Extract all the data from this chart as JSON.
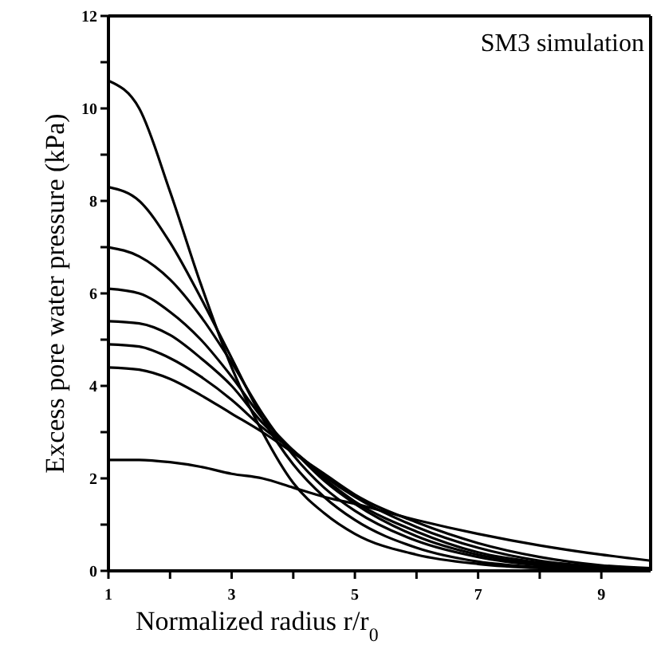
{
  "chart_data": {
    "type": "line",
    "xlabel": "Normalized radius r/r$_{0}$",
    "ylabel": "Excess pore water pressure (kPa)",
    "annotations": [
      "SM3 simulation"
    ],
    "x": [
      1,
      1.5,
      2,
      2.5,
      3,
      3.5,
      4,
      4.5,
      5,
      6,
      7,
      8,
      9,
      9.8
    ],
    "series": [
      {
        "color": "#000000",
        "values": [
          10.6,
          10.0,
          8.2,
          6.2,
          4.4,
          3.0,
          1.9,
          1.25,
          0.8,
          0.35,
          0.15,
          0.06,
          0.03,
          0.01
        ]
      },
      {
        "color": "#000000",
        "values": [
          8.3,
          8.0,
          7.1,
          5.9,
          4.6,
          3.3,
          2.3,
          1.6,
          1.1,
          0.5,
          0.2,
          0.08,
          0.03,
          0.01
        ]
      },
      {
        "color": "#000000",
        "values": [
          7.0,
          6.8,
          6.3,
          5.5,
          4.5,
          3.4,
          2.5,
          1.8,
          1.3,
          0.65,
          0.3,
          0.12,
          0.05,
          0.02
        ]
      },
      {
        "color": "#000000",
        "values": [
          6.1,
          6.0,
          5.6,
          5.0,
          4.2,
          3.3,
          2.6,
          1.95,
          1.45,
          0.75,
          0.35,
          0.15,
          0.06,
          0.02
        ]
      },
      {
        "color": "#000000",
        "values": [
          5.4,
          5.35,
          5.1,
          4.6,
          4.0,
          3.2,
          2.6,
          2.0,
          1.5,
          0.85,
          0.4,
          0.18,
          0.07,
          0.03
        ]
      },
      {
        "color": "#000000",
        "values": [
          4.9,
          4.85,
          4.6,
          4.2,
          3.7,
          3.1,
          2.6,
          2.05,
          1.6,
          0.95,
          0.5,
          0.22,
          0.09,
          0.04
        ]
      },
      {
        "color": "#000000",
        "values": [
          4.4,
          4.35,
          4.15,
          3.8,
          3.4,
          3.0,
          2.55,
          2.1,
          1.65,
          1.05,
          0.6,
          0.3,
          0.12,
          0.06
        ]
      },
      {
        "color": "#000000",
        "values": [
          2.4,
          2.4,
          2.35,
          2.25,
          2.1,
          2.0,
          1.8,
          1.6,
          1.45,
          1.1,
          0.8,
          0.55,
          0.35,
          0.22
        ]
      }
    ],
    "xlim": [
      1,
      9.8
    ],
    "ylim": [
      0,
      12
    ],
    "xticks": [
      1,
      {
        "value": 2,
        "label": null
      },
      3,
      {
        "value": 4,
        "label": null
      },
      5,
      {
        "value": 6,
        "label": null
      },
      7,
      {
        "value": 8,
        "label": null
      },
      9
    ],
    "yticks": [
      0,
      {
        "value": 1,
        "label": null
      },
      2,
      {
        "value": 3,
        "label": null
      },
      4,
      {
        "value": 5,
        "label": null
      },
      6,
      {
        "value": 7,
        "label": null
      },
      8,
      {
        "value": 9,
        "label": null
      },
      10,
      {
        "value": 11,
        "label": null
      },
      12
    ],
    "grid": false,
    "marker": "none",
    "line_style": "solid"
  }
}
